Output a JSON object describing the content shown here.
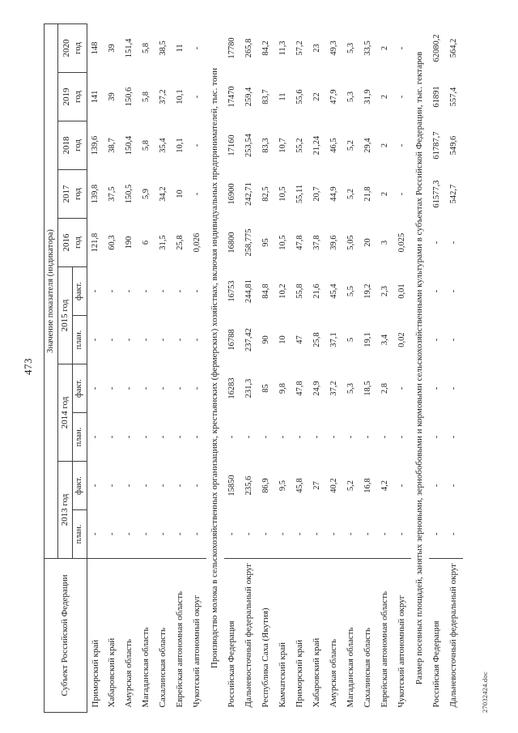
{
  "page": {
    "number": "473",
    "footer_filename": "27032424.doc"
  },
  "table": {
    "header": {
      "subject": "Субъект Российской Федерации",
      "indicator": "Значение показателя (индикатора)",
      "plan_label": "план.",
      "fact_label": "факт.",
      "year_groups": [
        {
          "label": "2013 год"
        },
        {
          "label": "2014 год"
        },
        {
          "label": "2015 год"
        }
      ],
      "single_years": [
        "2016 год",
        "2017 год",
        "2018 год",
        "2019 год",
        "2020 год"
      ]
    },
    "sections": [
      {
        "title": "",
        "rows": [
          {
            "name": "Приморский край",
            "values": [
              "-",
              "-",
              "-",
              "-",
              "-",
              "-",
              "121,8",
              "139,8",
              "139,6",
              "141",
              "148"
            ]
          },
          {
            "name": "Хабаровский край",
            "values": [
              "-",
              "-",
              "-",
              "-",
              "-",
              "-",
              "60,3",
              "37,5",
              "38,7",
              "39",
              "39"
            ]
          },
          {
            "name": "Амурская область",
            "values": [
              "-",
              "-",
              "-",
              "-",
              "-",
              "-",
              "190",
              "150,5",
              "150,4",
              "150,6",
              "151,4"
            ]
          },
          {
            "name": "Магаданская область",
            "values": [
              "-",
              "-",
              "-",
              "-",
              "-",
              "-",
              "6",
              "5,9",
              "5,8",
              "5,8",
              "5,8"
            ]
          },
          {
            "name": "Сахалинская область",
            "values": [
              "-",
              "-",
              "-",
              "-",
              "-",
              "-",
              "31,5",
              "34,2",
              "35,4",
              "37,2",
              "38,5"
            ]
          },
          {
            "name": "Еврейская автономная область",
            "values": [
              "-",
              "-",
              "-",
              "-",
              "-",
              "-",
              "25,8",
              "10",
              "10,1",
              "10,1",
              "11"
            ]
          },
          {
            "name": "Чукотский автономный округ",
            "values": [
              "-",
              "-",
              "-",
              "-",
              "-",
              "-",
              "0,026",
              "-",
              "-",
              "-",
              "-"
            ]
          }
        ]
      },
      {
        "title": "Производство молока в сельскохозяйственных организациях, крестьянских (фермерских) хозяйствах, включая индивидуальных предпринимателей, тыс. тонн",
        "rows": [
          {
            "name": "Российская Федерация",
            "values": [
              "-",
              "15850",
              "-",
              "16283",
              "16788",
              "16753",
              "16800",
              "16900",
              "17160",
              "17470",
              "17780"
            ]
          },
          {
            "name": "Дальневосточный федеральный округ",
            "values": [
              "-",
              "235,6",
              "-",
              "231,3",
              "237,42",
              "244,81",
              "258,775",
              "242,71",
              "253,54",
              "259,4",
              "265,8"
            ]
          },
          {
            "name": "Республика Саха (Якутия)",
            "values": [
              "-",
              "86,9",
              "-",
              "85",
              "90",
              "84,8",
              "95",
              "82,5",
              "83,3",
              "83,7",
              "84,2"
            ]
          },
          {
            "name": "Камчатский край",
            "values": [
              "-",
              "9,5",
              "-",
              "9,8",
              "10",
              "10,2",
              "10,5",
              "10,5",
              "10,7",
              "11",
              "11,3"
            ]
          },
          {
            "name": "Приморский край",
            "values": [
              "-",
              "45,8",
              "-",
              "47,8",
              "47",
              "55,8",
              "47,8",
              "55,11",
              "55,2",
              "55,6",
              "57,2"
            ]
          },
          {
            "name": "Хабаровский край",
            "values": [
              "-",
              "27",
              "-",
              "24,9",
              "25,8",
              "21,6",
              "37,8",
              "20,7",
              "21,24",
              "22",
              "23"
            ]
          },
          {
            "name": "Амурская область",
            "values": [
              "-",
              "40,2",
              "-",
              "37,2",
              "37,1",
              "45,4",
              "39,6",
              "44,9",
              "46,5",
              "47,9",
              "49,3"
            ]
          },
          {
            "name": "Магаданская область",
            "values": [
              "-",
              "5,2",
              "-",
              "5,3",
              "5",
              "5,5",
              "5,05",
              "5,2",
              "5,2",
              "5,3",
              "5,3"
            ]
          },
          {
            "name": "Сахалинская область",
            "values": [
              "-",
              "16,8",
              "-",
              "18,5",
              "19,1",
              "19,2",
              "20",
              "21,8",
              "29,4",
              "31,9",
              "33,5"
            ]
          },
          {
            "name": "Еврейская автономная область",
            "values": [
              "-",
              "4,2",
              "-",
              "2,8",
              "3,4",
              "2,3",
              "3",
              "2",
              "2",
              "2",
              "2"
            ]
          },
          {
            "name": "Чукотский автономный округ",
            "values": [
              "-",
              "-",
              "-",
              "-",
              "0,02",
              "0,01",
              "0,025",
              "-",
              "-",
              "-",
              "-"
            ]
          }
        ]
      },
      {
        "title": "Размер посевных площадей, занятых зерновыми, зернобобовыми и кормовыми сельскохозяйственными культурами в субъектах Российской Федерации, тыс. гектаров",
        "rows": [
          {
            "name": "Российская Федерация",
            "values": [
              "-",
              "-",
              "-",
              "-",
              "-",
              "-",
              "-",
              "61577,3",
              "61787,7",
              "61891",
              "62080,2"
            ]
          },
          {
            "name": "Дальневосточный федеральный округ",
            "values": [
              "-",
              "-",
              "-",
              "-",
              "-",
              "-",
              "-",
              "542,7",
              "549,6",
              "557,4",
              "564,2"
            ]
          }
        ]
      }
    ]
  }
}
